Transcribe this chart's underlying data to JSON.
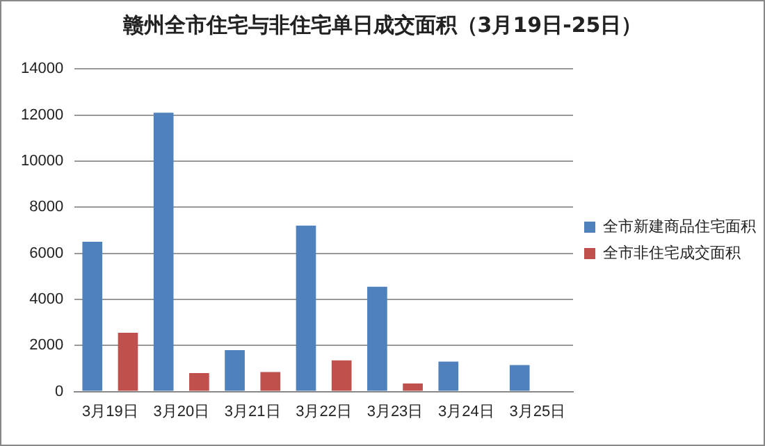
{
  "chart_data": {
    "type": "bar",
    "title": "赣州全市住宅与非住宅单日成交面积（3月19日-25日）",
    "categories": [
      "3月19日",
      "3月20日",
      "3月21日",
      "3月22日",
      "3月23日",
      "3月24日",
      "3月25日"
    ],
    "series": [
      {
        "name": "全市新建商品住宅面积",
        "color": "#4f81bd",
        "values": [
          6500,
          12100,
          1800,
          7200,
          4550,
          1300,
          1150
        ]
      },
      {
        "name": "全市非住宅成交面积",
        "color": "#c0504d",
        "values": [
          2550,
          800,
          850,
          1350,
          350,
          0,
          0
        ]
      }
    ],
    "ylim": [
      0,
      14000
    ],
    "yticks": [
      0,
      2000,
      4000,
      6000,
      8000,
      10000,
      12000,
      14000
    ],
    "grid": "y",
    "legend": "right"
  }
}
